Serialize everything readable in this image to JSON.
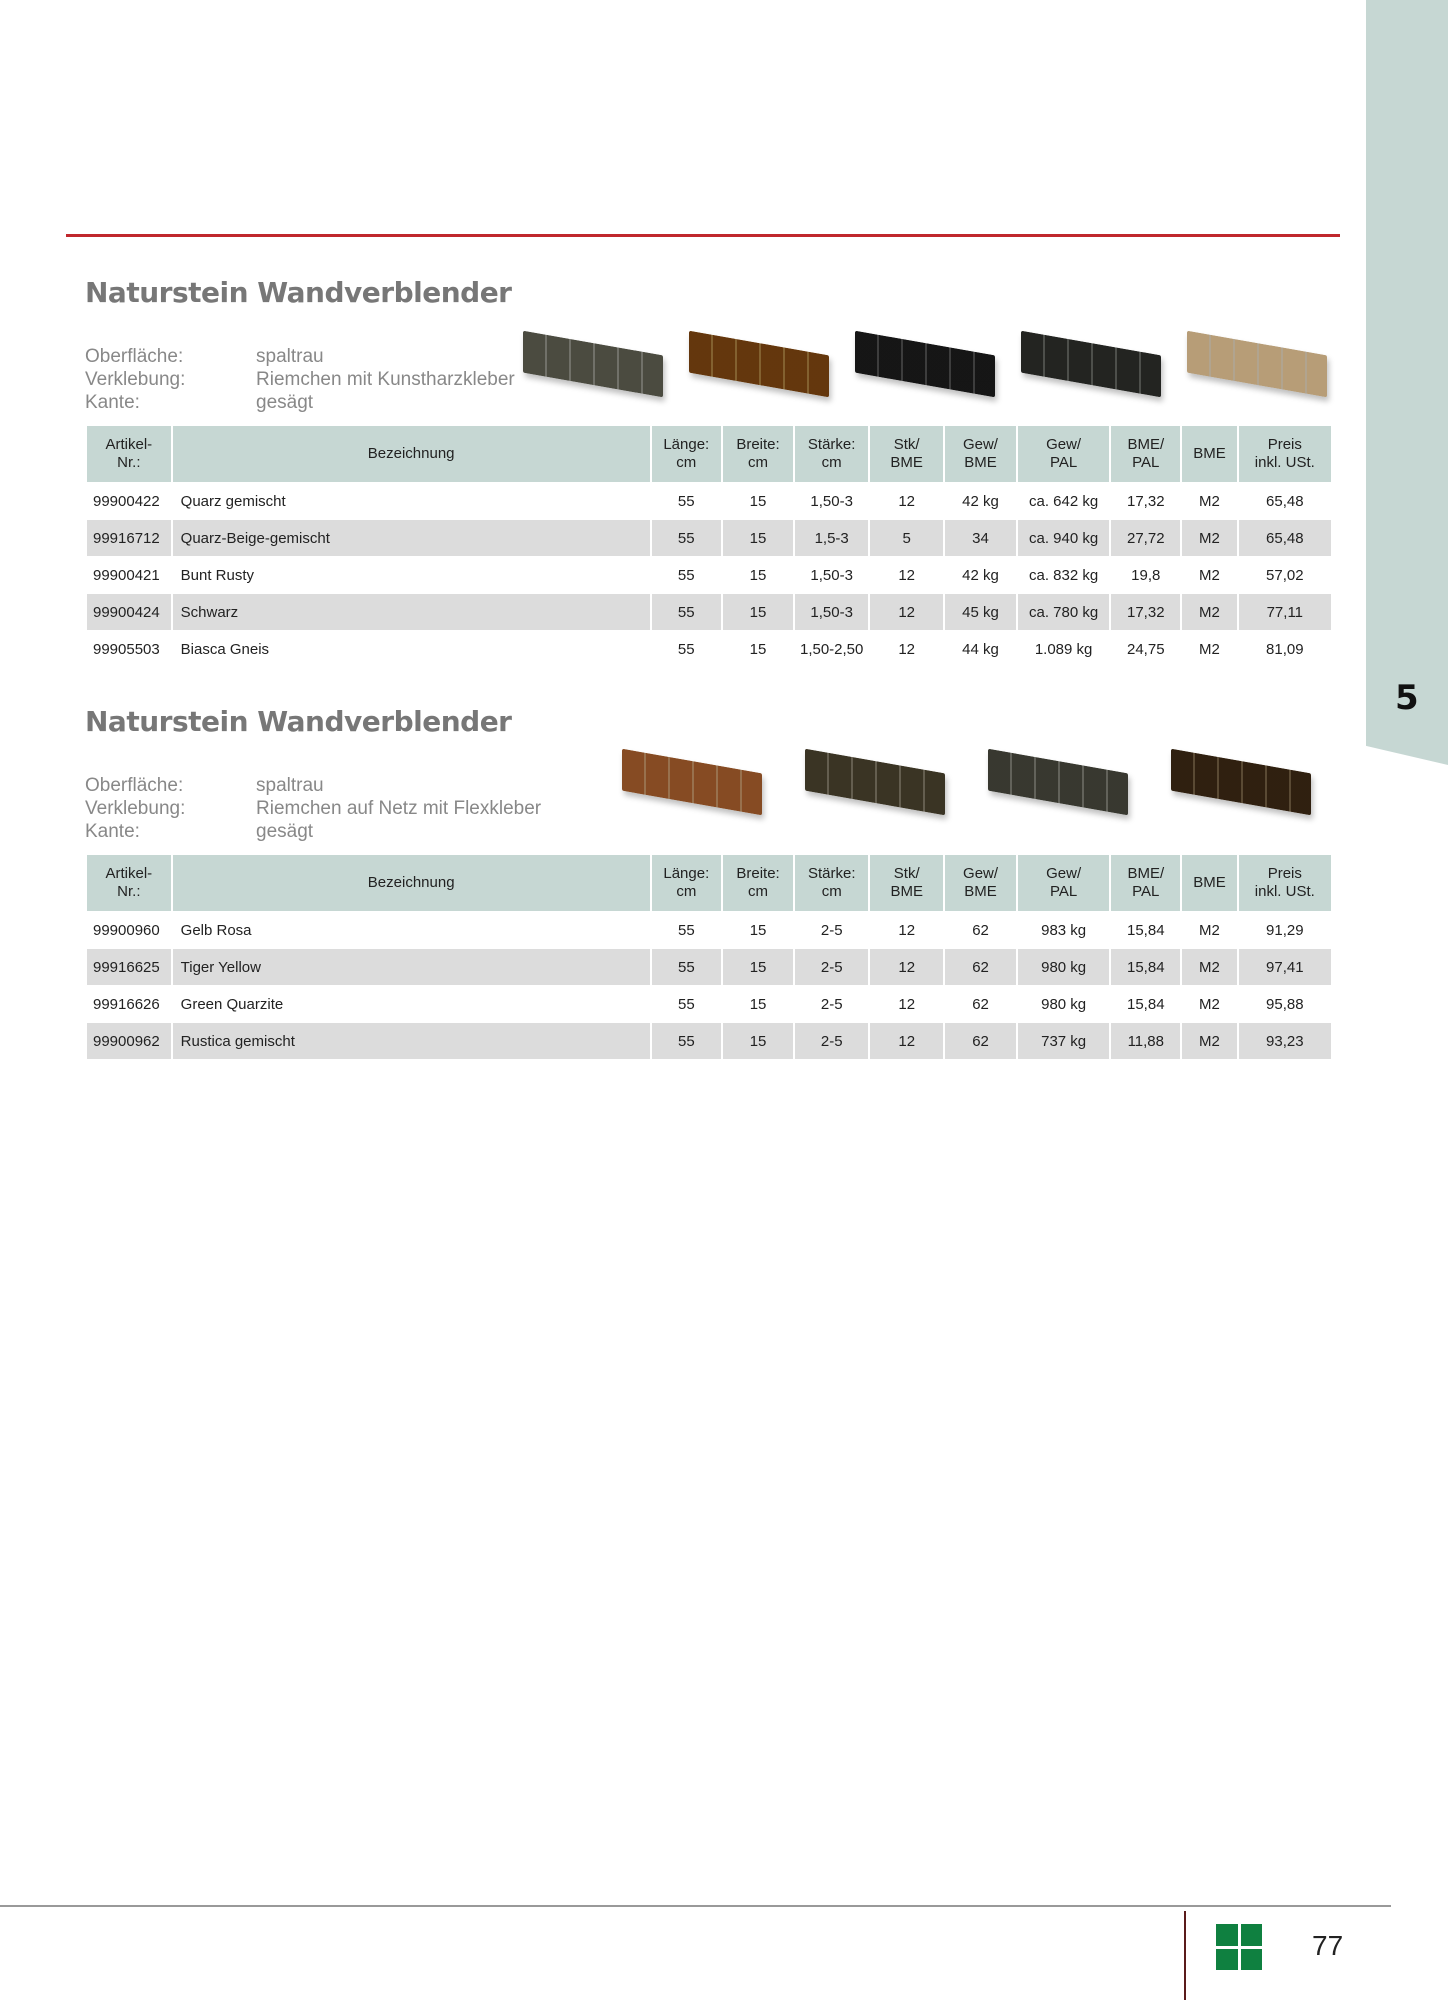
{
  "chapter_tab": "5",
  "columns": [
    "Artikel-\nNr.:",
    "Bezeichnung",
    "Länge:\ncm",
    "Breite:\ncm",
    "Stärke:\ncm",
    "Stk/\nBME",
    "Gew/\nBME",
    "Gew/\nPAL",
    "BME/\nPAL",
    "BME",
    "Preis\ninkl. USt."
  ],
  "sections": [
    {
      "title": "Naturstein Wandverblender",
      "info": [
        [
          "Oberfläche:",
          "spaltrau"
        ],
        [
          "Verklebung:",
          "Riemchen mit Kunstharzkleber"
        ],
        [
          "Kante:",
          "gesägt"
        ]
      ],
      "stone_colors": [
        "#8a8a80",
        "#a0763a",
        "#4a4a4a",
        "#5e605c",
        "#d8c8ae"
      ],
      "rows": [
        [
          "99900422",
          "Quarz gemischt",
          "55",
          "15",
          "1,50-3",
          "12",
          "42 kg",
          "ca. 642 kg",
          "17,32",
          "M2",
          "65,48"
        ],
        [
          "99916712",
          "Quarz-Beige-gemischt",
          "55",
          "15",
          "1,5-3",
          "5",
          "34",
          "ca. 940 kg",
          "27,72",
          "M2",
          "65,48"
        ],
        [
          "99900421",
          "Bunt Rusty",
          "55",
          "15",
          "1,50-3",
          "12",
          "42 kg",
          "ca. 832 kg",
          "19,8",
          "M2",
          "57,02"
        ],
        [
          "99900424",
          "Schwarz",
          "55",
          "15",
          "1,50-3",
          "12",
          "45 kg",
          "ca. 780 kg",
          "17,32",
          "M2",
          "77,11"
        ],
        [
          "99905503",
          "Biasca Gneis",
          "55",
          "15",
          "1,50-2,50",
          "12",
          "44 kg",
          "1.089 kg",
          "24,75",
          "M2",
          "81,09"
        ]
      ]
    },
    {
      "title": "Naturstein Wandverblender",
      "info": [
        [
          "Oberfläche:",
          "spaltrau"
        ],
        [
          "Verklebung:",
          "Riemchen auf Netz mit Flexkleber"
        ],
        [
          "Kante:",
          "gesägt"
        ]
      ],
      "stone_colors": [
        "#b98a5e",
        "#7a7360",
        "#77786e",
        "#6e5a40"
      ],
      "rows": [
        [
          "99900960",
          "Gelb Rosa",
          "55",
          "15",
          "2-5",
          "12",
          "62",
          "983 kg",
          "15,84",
          "M2",
          "91,29"
        ],
        [
          "99916625",
          "Tiger Yellow",
          "55",
          "15",
          "2-5",
          "12",
          "62",
          "980 kg",
          "15,84",
          "M2",
          "97,41"
        ],
        [
          "99916626",
          "Green Quarzite",
          "55",
          "15",
          "2-5",
          "12",
          "62",
          "980 kg",
          "15,84",
          "M2",
          "95,88"
        ],
        [
          "99900962",
          "Rustica gemischt",
          "55",
          "15",
          "2-5",
          "12",
          "62",
          "737 kg",
          "11,88",
          "M2",
          "93,23"
        ]
      ]
    }
  ],
  "footer": {
    "page_number": "77",
    "logo_color": "#0f8040"
  }
}
